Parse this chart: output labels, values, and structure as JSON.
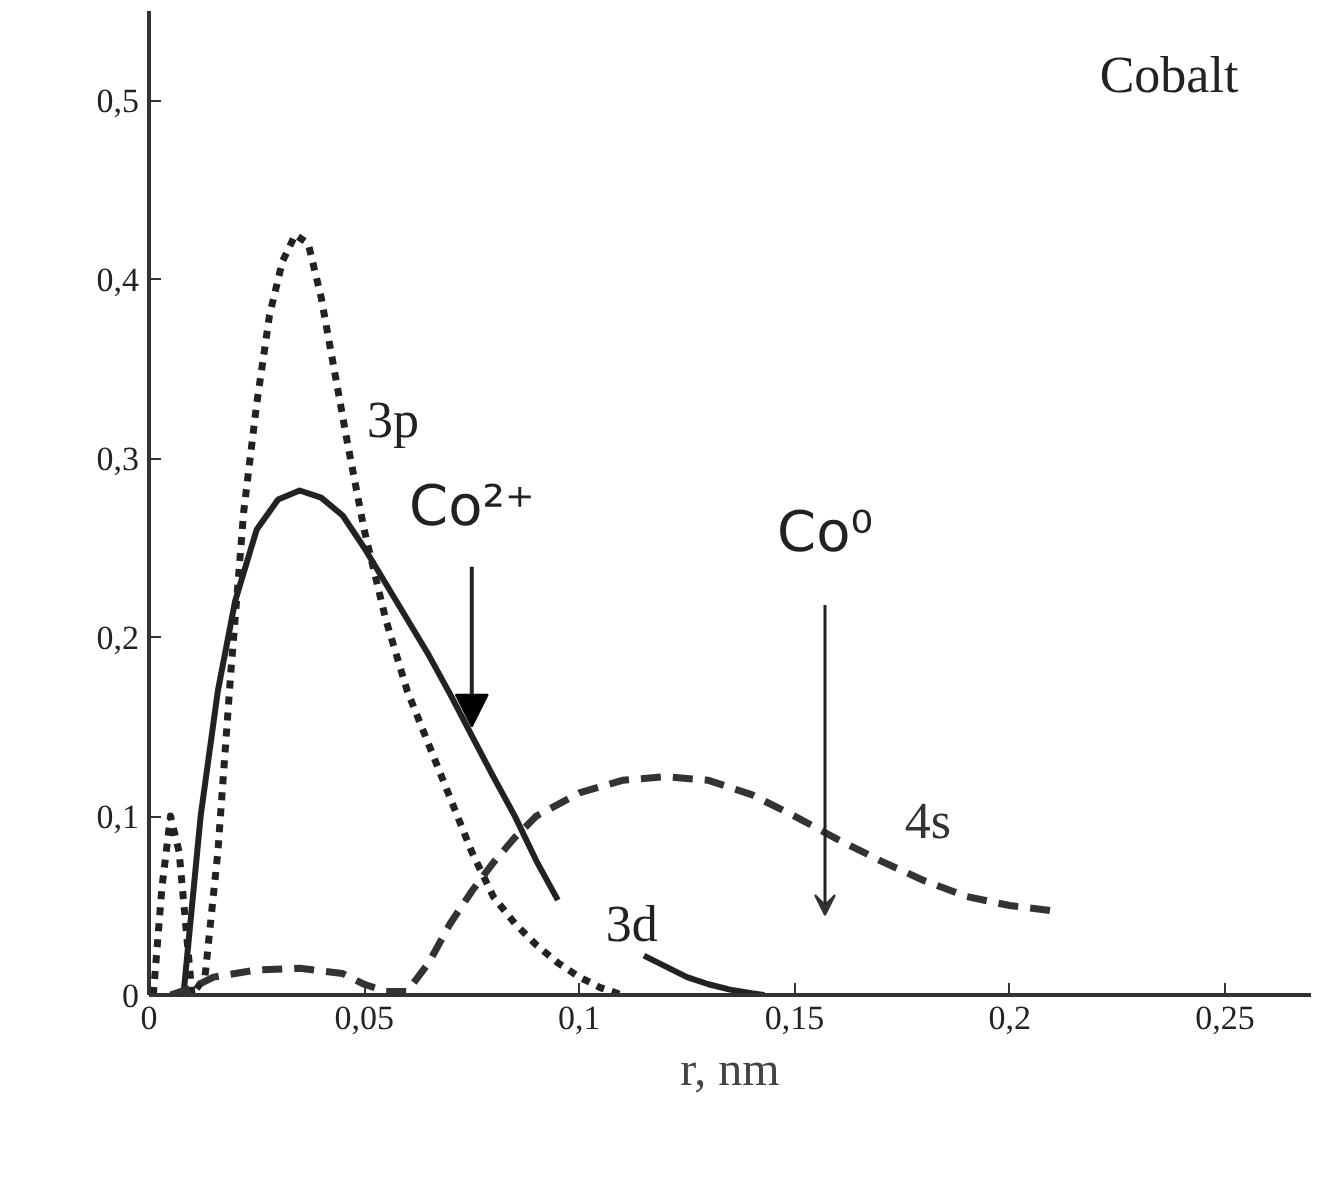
{
  "chart_data": {
    "type": "line",
    "xlabel": "r, nm",
    "grid": false,
    "marker": "none",
    "xlim": [
      0,
      0.27
    ],
    "ylim": [
      0,
      0.55
    ],
    "xticks": [
      0,
      {
        "value": 0.05,
        "label": "0,05"
      },
      {
        "value": 0.1,
        "label": "0,1"
      },
      {
        "value": 0.15,
        "label": "0,15"
      },
      {
        "value": 0.2,
        "label": "0,2"
      },
      {
        "value": 0.25,
        "label": "0,25"
      }
    ],
    "yticks": [
      0,
      {
        "value": 0.1,
        "label": "0,1"
      },
      {
        "value": 0.2,
        "label": "0,2"
      },
      {
        "value": 0.3,
        "label": "0,3"
      },
      {
        "value": 0.4,
        "label": "0,4"
      },
      {
        "value": 0.5,
        "label": "0,5"
      }
    ],
    "series": [
      {
        "name": "3d",
        "color": "#222222",
        "line_style": "solid",
        "x": [
          0.008,
          0.012,
          0.016,
          0.02,
          0.025,
          0.03,
          0.035,
          0.04,
          0.045,
          0.05,
          0.055,
          0.06,
          0.065,
          0.07,
          0.075,
          0.08,
          0.085,
          0.09,
          0.095,
          0.105,
          0.115,
          0.12,
          0.125,
          0.13,
          0.135,
          0.14,
          0.143
        ],
        "values": [
          0,
          0.1,
          0.17,
          0.22,
          0.26,
          0.277,
          0.282,
          0.278,
          0.268,
          0.25,
          0.23,
          0.21,
          0.19,
          0.168,
          0.145,
          0.122,
          0.1,
          0.075,
          0.053,
          null,
          0.022,
          0.016,
          0.01,
          0.006,
          0.003,
          0.001,
          0
        ]
      },
      {
        "name": "3p",
        "color": "#222222",
        "line_style": "dotted",
        "x": [
          0.001,
          0.003,
          0.005,
          0.007,
          0.01,
          0.013,
          0.016,
          0.019,
          0.022,
          0.025,
          0.028,
          0.031,
          0.034,
          0.037,
          0.04,
          0.043,
          0.046,
          0.05,
          0.055,
          0.06,
          0.065,
          0.07,
          0.075,
          0.08,
          0.085,
          0.09,
          0.095,
          0.1,
          0.105,
          0.11
        ],
        "values": [
          0,
          0.06,
          0.1,
          0.08,
          0,
          0.01,
          0.08,
          0.18,
          0.27,
          0.33,
          0.38,
          0.41,
          0.425,
          0.42,
          0.39,
          0.35,
          0.31,
          0.26,
          0.21,
          0.17,
          0.14,
          0.11,
          0.08,
          0.055,
          0.04,
          0.028,
          0.018,
          0.01,
          0.004,
          0
        ]
      },
      {
        "name": "4s",
        "color": "#333333",
        "line_style": "dashed",
        "x": [
          0.005,
          0.01,
          0.015,
          0.025,
          0.035,
          0.045,
          0.05,
          0.055,
          0.06,
          0.065,
          0.07,
          0.075,
          0.08,
          0.085,
          0.09,
          0.1,
          0.11,
          0.12,
          0.13,
          0.14,
          0.15,
          0.16,
          0.17,
          0.18,
          0.19,
          0.2,
          0.21
        ],
        "values": [
          0,
          0.004,
          0.01,
          0.014,
          0.015,
          0.012,
          0.006,
          0.002,
          0.002,
          0.018,
          0.04,
          0.058,
          0.074,
          0.088,
          0.1,
          0.113,
          0.12,
          0.122,
          0.12,
          0.112,
          0.1,
          0.087,
          0.075,
          0.064,
          0.055,
          0.05,
          0.047
        ]
      }
    ],
    "annotations": [
      "Cobalt",
      {
        "text": "Co²⁺",
        "x": 0.075,
        "y": 0.15
      },
      "Co⁰"
    ]
  }
}
